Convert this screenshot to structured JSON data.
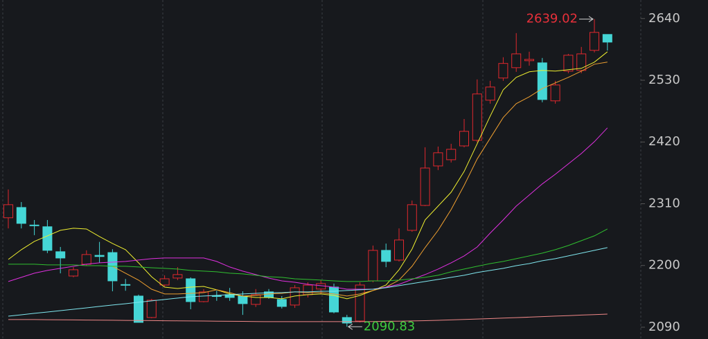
{
  "chart_data": {
    "type": "candlestick",
    "up_color": "#e0282e",
    "down_color": "#45d6d6",
    "ylim": [
      2069,
      2673
    ],
    "yticks": [
      2090,
      2200,
      2310,
      2420,
      2530,
      2640
    ],
    "open": [
      2285,
      2303.3,
      2272,
      2269,
      2224.5,
      2181.2,
      2202.2,
      2218,
      2223,
      2166,
      2145.5,
      2107.3,
      2165.2,
      2177.6,
      2176.3,
      2135.6,
      2146,
      2148,
      2145.5,
      2130.7,
      2153,
      2139.4,
      2129.5,
      2148,
      2158,
      2161.5,
      2107.3,
      2101.1,
      2172.6,
      2226.9,
      2209.6,
      2262.6,
      2307,
      2377.3,
      2388.4,
      2413,
      2423,
      2494.5,
      2534,
      2552.4,
      2564.8,
      2561,
      2493.3,
      2546.3,
      2547.5,
      2583.3,
      2611.6
    ],
    "high": [
      2335.4,
      2313,
      2281,
      2281,
      2233,
      2197,
      2227,
      2242,
      2229,
      2176,
      2148,
      2140.6,
      2182.5,
      2197,
      2178.8,
      2157.8,
      2155,
      2160,
      2154,
      2158,
      2158,
      2145.5,
      2165,
      2170,
      2174,
      2167.7,
      2112,
      2170,
      2235.5,
      2239,
      2266,
      2315.7,
      2410.6,
      2411.9,
      2416.8,
      2461,
      2531.5,
      2529,
      2571,
      2614,
      2580.8,
      2569.7,
      2529,
      2577,
      2589.4,
      2639.02,
      2611.6
    ],
    "low": [
      2266,
      2266,
      2254,
      2222,
      2186,
      2179,
      2199.7,
      2205,
      2154,
      2155,
      2098.6,
      2106,
      2162.8,
      2173.9,
      2122,
      2134.4,
      2137,
      2137,
      2112,
      2126,
      2140.6,
      2123.3,
      2124.5,
      2143,
      2149,
      2114.7,
      2090.83,
      2098.6,
      2170,
      2197,
      2207,
      2260,
      2305.8,
      2370,
      2383.5,
      2410.6,
      2419.3,
      2488.3,
      2529,
      2545,
      2556,
      2490.8,
      2488.3,
      2542.6,
      2542.6,
      2579.6,
      2583
    ],
    "close": [
      2308.3,
      2275,
      2271,
      2227,
      2213.3,
      2192.4,
      2219.5,
      2216,
      2172.6,
      2165,
      2098.6,
      2138.1,
      2176.3,
      2183.8,
      2135.6,
      2152.9,
      2145.5,
      2143,
      2132,
      2148,
      2143,
      2127,
      2160.3,
      2165,
      2167.7,
      2117.1,
      2097.4,
      2165.2,
      2226.9,
      2207.2,
      2245.4,
      2308.3,
      2373.6,
      2400.8,
      2407,
      2439,
      2505.6,
      2517.9,
      2560,
      2577,
      2567.2,
      2495.7,
      2521.6,
      2574.6,
      2577,
      2615.3,
      2598
    ],
    "series": [
      {
        "color": "#f0f030",
        "values": [
          2210.8,
          2228.1,
          2242.9,
          2252.8,
          2262.6,
          2266.3,
          2265,
          2251.5,
          2239.2,
          2228.1,
          2204.7,
          2180,
          2161.5,
          2159,
          2161.5,
          2162.7,
          2156.6,
          2149.2,
          2145.5,
          2143,
          2143,
          2140.6,
          2145.5,
          2148,
          2149.2,
          2146.7,
          2140.6,
          2146.7,
          2155.4,
          2165.2,
          2192.3,
          2229.3,
          2281.1,
          2305.8,
          2330.5,
          2367.5,
          2416.8,
          2466.1,
          2513,
          2535.2,
          2545,
          2547.5,
          2546.3,
          2548.7,
          2551.2,
          2562.3,
          2580.8
        ]
      },
      {
        "color": "#f0a030",
        "values": [
          null,
          null,
          null,
          null,
          null,
          null,
          null,
          null,
          2198.5,
          2186.2,
          2173.9,
          2157.8,
          2149.2,
          2149.2,
          2150.4,
          2151.6,
          2156.6,
          2151.6,
          2145.5,
          2146.7,
          2149.2,
          2150.4,
          2152.9,
          2151.6,
          2151.6,
          2149.2,
          2145.5,
          2149.2,
          2155.4,
          2161.5,
          2173.9,
          2198.5,
          2231.8,
          2262.6,
          2299.6,
          2342.8,
          2389.7,
          2426.7,
          2463.7,
          2488.3,
          2500.6,
          2515.4,
          2525.3,
          2535.2,
          2546.3,
          2558.6,
          2562.3
        ]
      },
      {
        "color": "#e030e0",
        "values": [
          2171.4,
          2178.8,
          2186.2,
          2191.1,
          2194.8,
          2198.5,
          2202.2,
          2204.7,
          2206,
          2207.2,
          2209.6,
          2212.1,
          2213.3,
          2213.3,
          2213.3,
          2213.3,
          2207.2,
          2197.3,
          2189.9,
          2183.7,
          2177.5,
          2172.6,
          2170.1,
          2166.4,
          2164,
          2161.5,
          2157.8,
          2157.8,
          2157.8,
          2161.5,
          2166.4,
          2175.1,
          2183.7,
          2193.6,
          2204.7,
          2217,
          2233,
          2257.7,
          2281.1,
          2305.8,
          2325.5,
          2345.3,
          2362.5,
          2381,
          2399.5,
          2420.5,
          2445.2
        ]
      },
      {
        "color": "#30c030",
        "values": [
          2202.2,
          2202.2,
          2202.2,
          2201,
          2201,
          2201,
          2199.7,
          2199.7,
          2198.5,
          2198.5,
          2197.3,
          2196,
          2194.8,
          2193.6,
          2191.1,
          2189.9,
          2188.7,
          2186.2,
          2185,
          2182.5,
          2180,
          2178.8,
          2176.3,
          2175.1,
          2173.9,
          2172.6,
          2171.4,
          2171.4,
          2172.6,
          2172.6,
          2173.9,
          2176.3,
          2178.8,
          2182.5,
          2188.7,
          2193.6,
          2198.5,
          2203.4,
          2207.2,
          2212.1,
          2217,
          2222,
          2228.1,
          2235.5,
          2244.1,
          2252.8,
          2265.1
        ]
      },
      {
        "color": "#80e8f0",
        "values": [
          2109.7,
          2112.2,
          2114.7,
          2117.1,
          2119.6,
          2122,
          2124.5,
          2127,
          2129.5,
          2131.9,
          2134.4,
          2136.9,
          2139.4,
          2141.8,
          2144.3,
          2145.5,
          2146.7,
          2148,
          2149.2,
          2150.4,
          2151.6,
          2151.6,
          2152.9,
          2152.9,
          2154.1,
          2154.1,
          2155.4,
          2156.6,
          2157.8,
          2160.3,
          2164,
          2167.7,
          2171.4,
          2175.1,
          2178.8,
          2182.5,
          2187.4,
          2191.1,
          2194.8,
          2199.7,
          2203.4,
          2208.4,
          2212.1,
          2217,
          2222,
          2226.9,
          2231.8
        ]
      },
      {
        "color": "#f08888",
        "values": [
          2103.6,
          2103.6,
          2103.6,
          2103.4,
          2103.2,
          2103,
          2102.8,
          2102.6,
          2102.4,
          2102.2,
          2102,
          2101.8,
          2101.6,
          2101.4,
          2101.2,
          2101,
          2100.8,
          2100.6,
          2100.4,
          2100.2,
          2100,
          2100,
          2100,
          2100,
          2100,
          2100,
          2100,
          2100,
          2100.2,
          2100.5,
          2100.8,
          2101.2,
          2101.7,
          2102.3,
          2103,
          2103.8,
          2104.6,
          2105.4,
          2106.2,
          2107.1,
          2108,
          2108.9,
          2109.8,
          2110.7,
          2111.6,
          2112.5,
          2113.4
        ]
      }
    ],
    "high_label": 2639.02,
    "high_label_color": "#e8303a",
    "low_label": 2090.83,
    "low_label_color": "#3ecc3e"
  }
}
